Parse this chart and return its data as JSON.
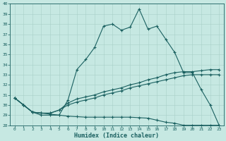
{
  "xlabel": "Humidex (Indice chaleur)",
  "background_color": "#c6e8e2",
  "grid_color": "#a8cfc8",
  "line_color": "#1a6060",
  "xlim": [
    -0.5,
    23.5
  ],
  "ylim": [
    28,
    40
  ],
  "yticks": [
    28,
    29,
    30,
    31,
    32,
    33,
    34,
    35,
    36,
    37,
    38,
    39,
    40
  ],
  "xticks": [
    0,
    1,
    2,
    3,
    4,
    5,
    6,
    7,
    8,
    9,
    10,
    11,
    12,
    13,
    14,
    15,
    16,
    17,
    18,
    19,
    20,
    21,
    22,
    23
  ],
  "series": [
    {
      "x": [
        0,
        1,
        2,
        3,
        4,
        5,
        6,
        7,
        8,
        9,
        10,
        11,
        12,
        13,
        14,
        15,
        16,
        17,
        18,
        19,
        20,
        21,
        22,
        23
      ],
      "y": [
        30.7,
        30.0,
        29.3,
        29.0,
        29.0,
        29.0,
        30.5,
        33.5,
        34.5,
        35.7,
        37.8,
        38.0,
        37.4,
        37.7,
        39.5,
        37.5,
        37.8,
        36.5,
        35.2,
        33.2,
        33.2,
        31.5,
        30.0,
        28.0
      ]
    },
    {
      "x": [
        0,
        1,
        2,
        3,
        4,
        5,
        6,
        7,
        8,
        9,
        10,
        11,
        12,
        13,
        14,
        15,
        16,
        17,
        18,
        19,
        20,
        21,
        22,
        23
      ],
      "y": [
        30.7,
        30.0,
        29.3,
        29.2,
        29.2,
        29.5,
        30.2,
        30.6,
        30.8,
        31.0,
        31.3,
        31.5,
        31.7,
        32.0,
        32.2,
        32.5,
        32.7,
        33.0,
        33.2,
        33.3,
        33.3,
        33.4,
        33.5,
        33.5
      ]
    },
    {
      "x": [
        0,
        1,
        2,
        3,
        4,
        5,
        6,
        7,
        8,
        9,
        10,
        11,
        12,
        13,
        14,
        15,
        16,
        17,
        18,
        19,
        20,
        21,
        22,
        23
      ],
      "y": [
        30.7,
        30.0,
        29.3,
        29.2,
        29.2,
        29.5,
        30.0,
        30.3,
        30.5,
        30.7,
        31.0,
        31.2,
        31.4,
        31.7,
        31.9,
        32.1,
        32.3,
        32.5,
        32.7,
        32.9,
        33.0,
        33.0,
        33.0,
        33.0
      ]
    },
    {
      "x": [
        0,
        1,
        2,
        3,
        4,
        5,
        6,
        7,
        8,
        9,
        10,
        11,
        12,
        13,
        14,
        15,
        16,
        17,
        18,
        19,
        20,
        21,
        22,
        23
      ],
      "y": [
        30.7,
        30.0,
        29.3,
        29.2,
        29.1,
        29.0,
        28.9,
        28.85,
        28.8,
        28.8,
        28.8,
        28.8,
        28.8,
        28.8,
        28.75,
        28.7,
        28.5,
        28.3,
        28.2,
        28.0,
        28.0,
        28.0,
        28.0,
        28.0
      ]
    }
  ],
  "xlabel_fontsize": 6,
  "tick_fontsize": 4.5,
  "linewidth": 0.8,
  "marker_size": 3
}
